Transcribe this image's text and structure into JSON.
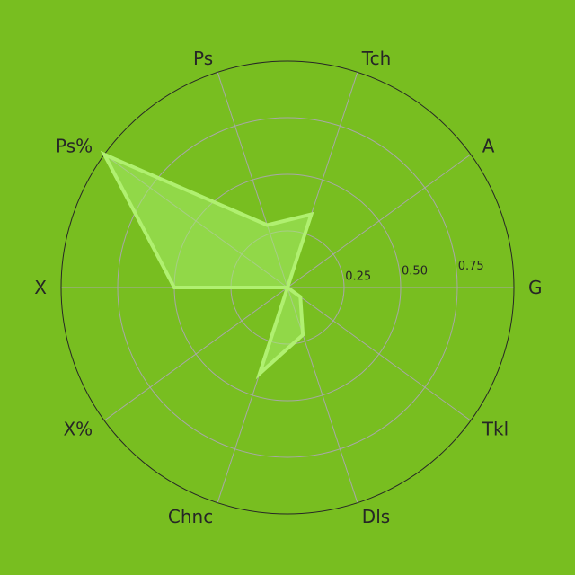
{
  "chart_data": {
    "type": "radar",
    "title": "",
    "categories": [
      "G",
      "A",
      "Tch",
      "Ps",
      "Ps%",
      "X",
      "X%",
      "Chnc",
      "Dls",
      "Tkl"
    ],
    "series": [
      {
        "values": [
          0.0,
          0.0,
          0.34,
          0.29,
          1.0,
          0.5,
          0.0,
          0.4,
          0.22,
          0.07
        ]
      }
    ],
    "rlim": [
      0,
      1
    ],
    "rticks": [
      0.25,
      0.5,
      0.75
    ],
    "rtick_labels": [
      "0.25",
      "0.50",
      "0.75"
    ],
    "grid": true,
    "colors": {
      "background": "#78be20",
      "fill": "#a6ec6a",
      "fill_opacity": 0.55,
      "line": "#b0f070",
      "grid": "#a8a8a8",
      "outer_ring": "#262626",
      "text": "#262626"
    }
  }
}
